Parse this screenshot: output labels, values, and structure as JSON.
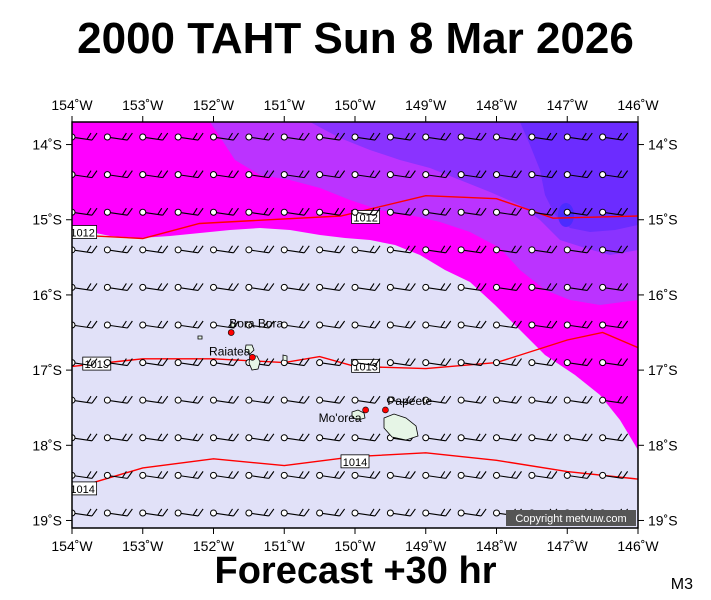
{
  "title": "2000 TAHT Sun 8 Mar 2026",
  "footer": "Forecast +30 hr",
  "footer_code": "M3",
  "copyright": "Copyright metvuw.com",
  "map": {
    "lon_min": -154,
    "lon_max": -146,
    "lat_min": -19.1,
    "lat_max": -13.7,
    "lon_ticks": [
      {
        "v": -154,
        "label": "154˚W"
      },
      {
        "v": -153,
        "label": "153˚W"
      },
      {
        "v": -152,
        "label": "152˚W"
      },
      {
        "v": -151,
        "label": "151˚W"
      },
      {
        "v": -150,
        "label": "150˚W"
      },
      {
        "v": -149,
        "label": "149˚W"
      },
      {
        "v": -148,
        "label": "148˚W"
      },
      {
        "v": -147,
        "label": "147˚W"
      },
      {
        "v": -146,
        "label": "146˚W"
      }
    ],
    "lat_ticks": [
      {
        "v": -14,
        "label": "14˚S"
      },
      {
        "v": -15,
        "label": "15˚S"
      },
      {
        "v": -16,
        "label": "16˚S"
      },
      {
        "v": -17,
        "label": "17˚S"
      },
      {
        "v": -18,
        "label": "18˚S"
      },
      {
        "v": -19,
        "label": "19˚S"
      }
    ],
    "colors": {
      "calm": "#e1e1f8",
      "magenta": "#ff00ff",
      "violet": "#bb33ff",
      "purple": "#8a33ff",
      "blue": "#6c2cff",
      "isobar": "#ff0000",
      "town": "#ff0000"
    },
    "places": [
      {
        "name": "Bora Bora",
        "lon": -151.75,
        "lat": -16.5
      },
      {
        "name": "Raiatea",
        "lon": -151.45,
        "lat": -16.83
      },
      {
        "name": "Mo'orea",
        "lon": -149.85,
        "lat": -17.53
      },
      {
        "name": "Papeete",
        "lon": -149.57,
        "lat": -17.53
      }
    ],
    "isobars": [
      {
        "label": "1012",
        "points": [
          [
            -154,
            -15.2
          ],
          [
            -153,
            -15.25
          ],
          [
            -152.2,
            -15.05
          ],
          [
            -151.2,
            -15.0
          ],
          [
            -150.2,
            -14.95
          ],
          [
            -149,
            -14.68
          ],
          [
            -148,
            -14.72
          ],
          [
            -147.2,
            -14.98
          ],
          [
            -146,
            -14.95
          ]
        ],
        "labels_at": [
          [
            -153.85,
            -15.17
          ],
          [
            -149.85,
            -14.97
          ]
        ]
      },
      {
        "label": "1013",
        "points": [
          [
            -154,
            -16.95
          ],
          [
            -153,
            -16.85
          ],
          [
            -152,
            -16.85
          ],
          [
            -151,
            -16.9
          ],
          [
            -150.5,
            -16.82
          ],
          [
            -150,
            -16.95
          ],
          [
            -149,
            -16.98
          ],
          [
            -148,
            -16.9
          ],
          [
            -147,
            -16.6
          ],
          [
            -146.5,
            -16.5
          ],
          [
            -146,
            -16.7
          ]
        ],
        "labels_at": [
          [
            -153.65,
            -16.92
          ],
          [
            -149.85,
            -16.95
          ]
        ]
      },
      {
        "label": "1014",
        "points": [
          [
            -154,
            -18.58
          ],
          [
            -153,
            -18.3
          ],
          [
            -152,
            -18.18
          ],
          [
            -151,
            -18.27
          ],
          [
            -150,
            -18.15
          ],
          [
            -149,
            -18.1
          ],
          [
            -148,
            -18.2
          ],
          [
            -147,
            -18.35
          ],
          [
            -146,
            -18.45
          ]
        ],
        "labels_at": [
          [
            -153.85,
            -18.58
          ],
          [
            -150,
            -18.22
          ]
        ]
      }
    ]
  }
}
